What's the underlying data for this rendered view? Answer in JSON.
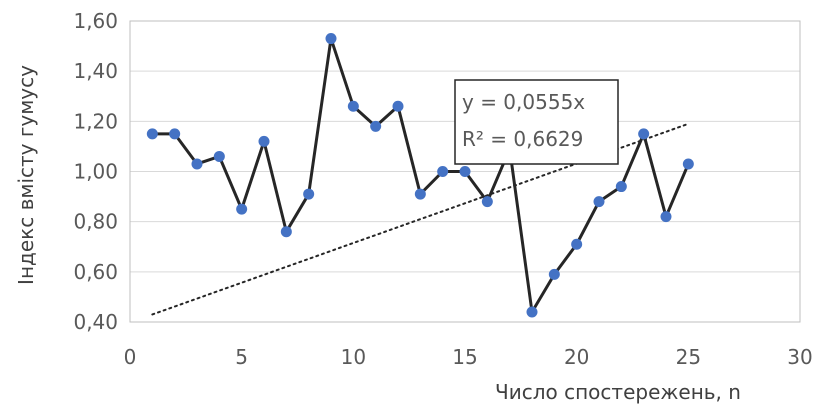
{
  "chart_data": {
    "type": "line",
    "xlabel": "Число спостережень, n",
    "ylabel": "Індекс вмісту гумусу",
    "xlim": [
      0,
      30
    ],
    "ylim": [
      0.4,
      1.6
    ],
    "x_ticks": [
      0,
      5,
      10,
      15,
      20,
      25,
      30
    ],
    "y_ticks": [
      0.4,
      0.6,
      0.8,
      1.0,
      1.2,
      1.4,
      1.6
    ],
    "x_tick_labels": [
      "0",
      "5",
      "10",
      "15",
      "20",
      "25",
      "30"
    ],
    "y_tick_labels": [
      "0,40",
      "0,60",
      "0,80",
      "1,00",
      "1,20",
      "1,40",
      "1,60"
    ],
    "grid": "horizontal",
    "colors": {
      "line": "#262626",
      "marker": "#4472c4",
      "trend": "#262626",
      "grid": "#d9d9d9"
    },
    "series": [
      {
        "x": [
          1,
          2,
          3,
          4,
          5,
          6,
          7,
          8,
          9,
          10,
          11,
          12,
          13,
          14,
          15,
          16,
          17,
          18,
          19,
          20,
          21,
          22,
          23,
          24,
          25
        ],
        "values": [
          1.15,
          1.15,
          1.03,
          1.06,
          0.85,
          1.12,
          0.76,
          0.91,
          1.53,
          1.26,
          1.18,
          1.26,
          0.91,
          1.0,
          1.0,
          0.88,
          1.09,
          0.44,
          0.59,
          0.71,
          0.88,
          0.94,
          1.15,
          0.82,
          1.03
        ]
      }
    ],
    "trendline": {
      "type": "linear",
      "style": "dotted",
      "x_range": [
        1,
        25
      ],
      "y_range": [
        0.43,
        1.19
      ],
      "equation": "y = 0,0555x",
      "r_squared": "R² = 0,6629"
    }
  }
}
